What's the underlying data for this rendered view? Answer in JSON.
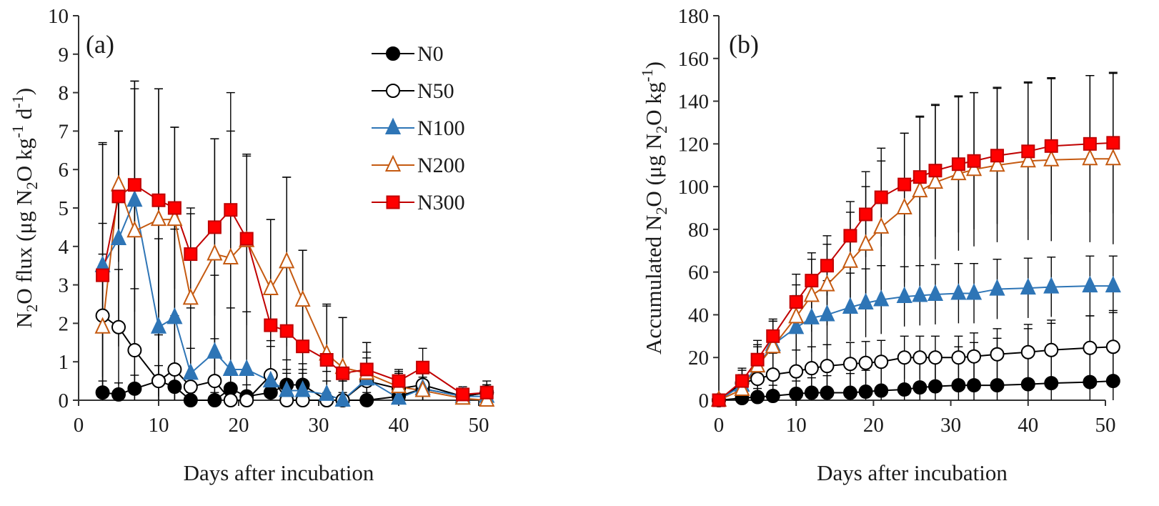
{
  "chart_data": [
    {
      "type": "line",
      "panel": "(a)",
      "xlabel": "Days after incubation",
      "ylabel": {
        "base": "N",
        "sub": "2",
        "rest": "O flux (μg N",
        "sub2": "2",
        "rest2": "O kg",
        "sup": "-1",
        "rest3": " d",
        "sup2": "-1",
        "end": ")"
      },
      "xlim": [
        0,
        50
      ],
      "ylim": [
        0,
        10
      ],
      "xticks": [
        "0",
        "10",
        "20",
        "30",
        "40",
        "50"
      ],
      "yticks": [
        "0",
        "1",
        "2",
        "3",
        "4",
        "5",
        "6",
        "7",
        "8",
        "9",
        "10"
      ],
      "x": [
        3,
        5,
        7,
        10,
        12,
        14,
        17,
        19,
        21,
        24,
        26,
        28,
        31,
        33,
        36,
        40,
        43,
        48,
        51
      ],
      "series": [
        {
          "name": "N0",
          "values": [
            0.2,
            0.15,
            0.3,
            0.5,
            0.35,
            0.0,
            0.0,
            0.3,
            0.1,
            0.2,
            0.4,
            0.4,
            0.0,
            0.0,
            0.0,
            0.1,
            0.3,
            0.1,
            0.2
          ],
          "err": [
            0.3,
            0.3,
            0.35,
            0.4,
            0.4,
            0.2,
            0.2,
            0.4,
            0.3,
            0.4,
            0.4,
            0.4,
            0.2,
            0.2,
            0.2,
            0.2,
            0.3,
            0.2,
            0.2
          ]
        },
        {
          "name": "N50",
          "values": [
            2.2,
            1.9,
            1.3,
            0.5,
            0.8,
            0.35,
            0.5,
            0.0,
            0.0,
            0.65,
            0.0,
            0.0,
            0.0,
            0.0,
            0.5,
            0.3,
            0.4,
            0.1,
            0.2
          ],
          "err": [
            1.6,
            1.5,
            1.6,
            1.2,
            1.4,
            1.0,
            1.1,
            0.8,
            0.8,
            0.9,
            0.7,
            0.7,
            0.5,
            0.5,
            0.6,
            0.4,
            0.5,
            0.2,
            0.2
          ]
        },
        {
          "name": "N100",
          "values": [
            3.5,
            4.2,
            5.2,
            1.9,
            2.15,
            0.7,
            1.25,
            0.8,
            0.8,
            0.5,
            0.25,
            0.25,
            0.15,
            0.0,
            0.55,
            0.05,
            0.3,
            0.1,
            0.1
          ],
          "err": [
            3.2,
            2.8,
            2.9,
            2.3,
            2.3,
            1.7,
            2.0,
            1.6,
            1.5,
            0.9,
            0.8,
            0.7,
            0.6,
            0.5,
            0.7,
            0.4,
            0.5,
            0.2,
            0.2
          ]
        },
        {
          "name": "N200",
          "values": [
            1.9,
            5.6,
            4.4,
            4.7,
            4.7,
            2.65,
            3.8,
            3.7,
            4.15,
            2.9,
            3.6,
            2.6,
            1.2,
            0.85,
            0.7,
            0.35,
            0.25,
            0.05,
            0.0
          ],
          "err": [
            2.7,
            1.4,
            3.9,
            3.4,
            2.4,
            2.2,
            3.0,
            3.3,
            2.2,
            1.8,
            2.2,
            1.3,
            1.3,
            1.3,
            0.8,
            0.4,
            0.6,
            0.2,
            0.3
          ]
        },
        {
          "name": "N300",
          "values": [
            3.25,
            5.3,
            5.6,
            5.2,
            5.0,
            3.8,
            4.5,
            4.95,
            4.2,
            1.95,
            1.8,
            1.4,
            1.05,
            0.7,
            0.8,
            0.5,
            0.85,
            0.15,
            0.2
          ],
          "err": [
            3.4,
            1.7,
            2.7,
            2.9,
            2.1,
            1.2,
            2.3,
            3.05,
            2.2,
            2.75,
            4.0,
            2.5,
            1.4,
            1.45,
            0.7,
            0.3,
            0.5,
            0.2,
            0.3
          ]
        }
      ]
    },
    {
      "type": "line",
      "panel": "(b)",
      "xlabel": "Days after incubation",
      "ylabel": {
        "base": "Accumulated  N",
        "sub": "2",
        "rest": "O (μg N",
        "sub2": "2",
        "rest2": "O kg",
        "sup": "-1",
        "end": ")"
      },
      "xlim": [
        0,
        50
      ],
      "ylim": [
        0,
        180
      ],
      "xticks": [
        "0",
        "10",
        "20",
        "30",
        "40",
        "50"
      ],
      "yticks": [
        "0",
        "20",
        "40",
        "60",
        "80",
        "100",
        "120",
        "140",
        "160",
        "180"
      ],
      "x": [
        0,
        3,
        5,
        7,
        10,
        12,
        14,
        17,
        19,
        21,
        24,
        26,
        28,
        31,
        33,
        36,
        40,
        43,
        48,
        51
      ],
      "series": [
        {
          "name": "N0",
          "values": [
            0,
            1,
            1.5,
            2,
            3,
            3.5,
            3.5,
            3.5,
            4,
            4.5,
            5,
            6,
            6.5,
            7,
            7,
            7,
            7.5,
            8,
            8.5,
            9
          ],
          "err": [
            0,
            3,
            4,
            5,
            6,
            7,
            8,
            9,
            10,
            11,
            13,
            14,
            15,
            18,
            20,
            22,
            26,
            28,
            31,
            33
          ]
        },
        {
          "name": "N50",
          "values": [
            0,
            8,
            10,
            12,
            13.5,
            15,
            16,
            17,
            17.5,
            18,
            20,
            20,
            20,
            20,
            20.5,
            21.5,
            22.5,
            23.5,
            24.5,
            25
          ],
          "err": [
            0,
            6,
            8,
            10,
            10,
            10,
            10,
            10,
            10,
            10,
            10,
            10,
            10,
            10,
            11,
            12,
            13,
            14,
            15,
            16
          ]
        },
        {
          "name": "N100",
          "values": [
            0,
            7,
            16,
            26,
            34,
            38.5,
            40,
            43.5,
            45.5,
            47,
            48.5,
            49,
            49.5,
            50,
            50,
            52,
            52.5,
            53,
            53.5,
            53.5
          ],
          "err": [
            0,
            5,
            9,
            11,
            15,
            16,
            16,
            16,
            16,
            16,
            14,
            14,
            14,
            14,
            14,
            14,
            14,
            14,
            14,
            14
          ]
        },
        {
          "name": "N200",
          "values": [
            0,
            5,
            16,
            25,
            39,
            49,
            54,
            65,
            73,
            81,
            90,
            98,
            102,
            106,
            108,
            110,
            112,
            112.5,
            113,
            113
          ],
          "err": [
            0,
            6,
            10,
            12,
            15,
            17,
            19,
            23,
            27,
            31,
            35,
            35,
            36,
            36,
            36,
            36,
            37,
            38,
            39,
            40
          ]
        },
        {
          "name": "N300",
          "values": [
            0,
            9,
            19,
            30,
            46,
            56,
            63,
            77,
            87,
            95,
            101,
            104.5,
            107.5,
            110.5,
            112,
            114.5,
            116.5,
            119,
            120,
            120.5
          ],
          "err": [
            0,
            6,
            9,
            8,
            13,
            13,
            14,
            16,
            20,
            23,
            24,
            28,
            31,
            32,
            32,
            32,
            32,
            32,
            32,
            33
          ]
        }
      ]
    }
  ],
  "legend": [
    "N0",
    "N50",
    "N100",
    "N200",
    "N300"
  ],
  "series_colors": {
    "N0": {
      "stroke": "#000000",
      "fill": "#000000",
      "marker": "circle-filled"
    },
    "N50": {
      "stroke": "#000000",
      "fill": "#ffffff",
      "marker": "circle-open"
    },
    "N100": {
      "stroke": "#2e75b6",
      "fill": "#2e75b6",
      "marker": "triangle-filled"
    },
    "N200": {
      "stroke": "#c55a11",
      "fill": "#ffffff",
      "marker": "triangle-open"
    },
    "N300": {
      "stroke": "#c00000",
      "fill": "#ff0000",
      "marker": "square-filled"
    }
  }
}
